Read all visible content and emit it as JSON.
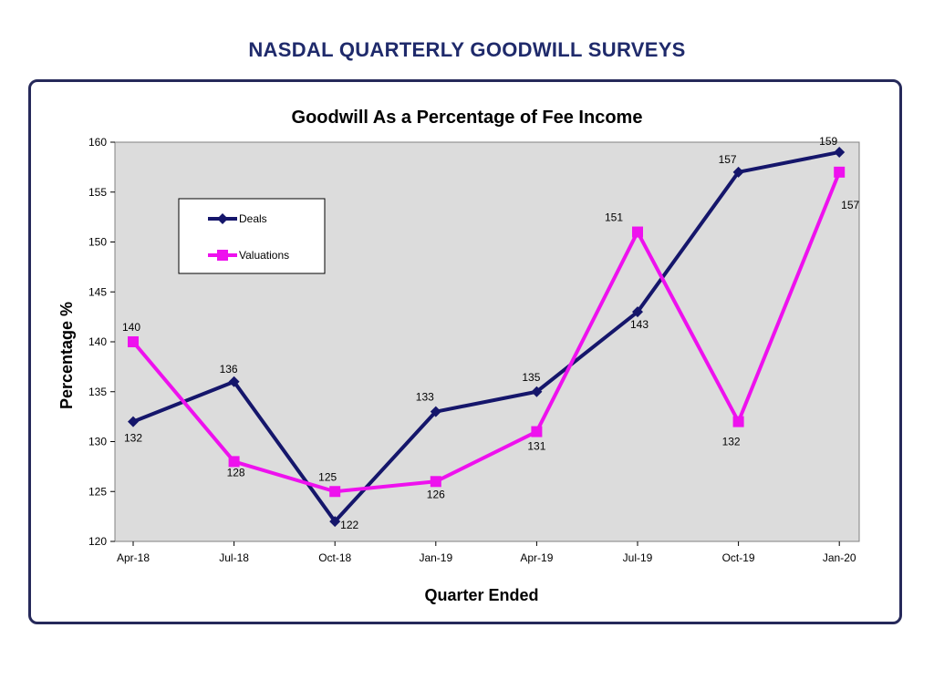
{
  "page": {
    "title": "NASDAL QUARTERLY GOODWILL SURVEYS"
  },
  "colors": {
    "title": "#1f2a6b",
    "frame": "#26295a",
    "plot_background": "#dcdcdc",
    "deals": "#15166b",
    "valuations": "#ee11ee"
  },
  "chart_data": {
    "type": "line",
    "title": "Goodwill As a Percentage of Fee Income",
    "xlabel": "Quarter Ended",
    "ylabel": "Percentage %",
    "categories": [
      "Apr-18",
      "Jul-18",
      "Oct-18",
      "Jan-19",
      "Apr-19",
      "Jul-19",
      "Oct-19",
      "Jan-20"
    ],
    "ylim": [
      120,
      160
    ],
    "yticks": [
      120,
      125,
      130,
      135,
      140,
      145,
      150,
      155,
      160
    ],
    "grid": false,
    "legend_position": "top-left",
    "series": [
      {
        "name": "Deals",
        "marker": "diamond",
        "color": "#15166b",
        "values": [
          132,
          136,
          122,
          133,
          135,
          143,
          157,
          159
        ],
        "labels": [
          "132",
          "136",
          "122",
          "133",
          "135",
          "143",
          "157",
          "159"
        ]
      },
      {
        "name": "Valuations",
        "marker": "square",
        "color": "#ee11ee",
        "values": [
          140,
          128,
          125,
          126,
          131,
          151,
          132,
          157
        ],
        "labels": [
          "140",
          "128",
          "125",
          "126",
          "131",
          "151",
          "132",
          "157"
        ]
      }
    ]
  }
}
